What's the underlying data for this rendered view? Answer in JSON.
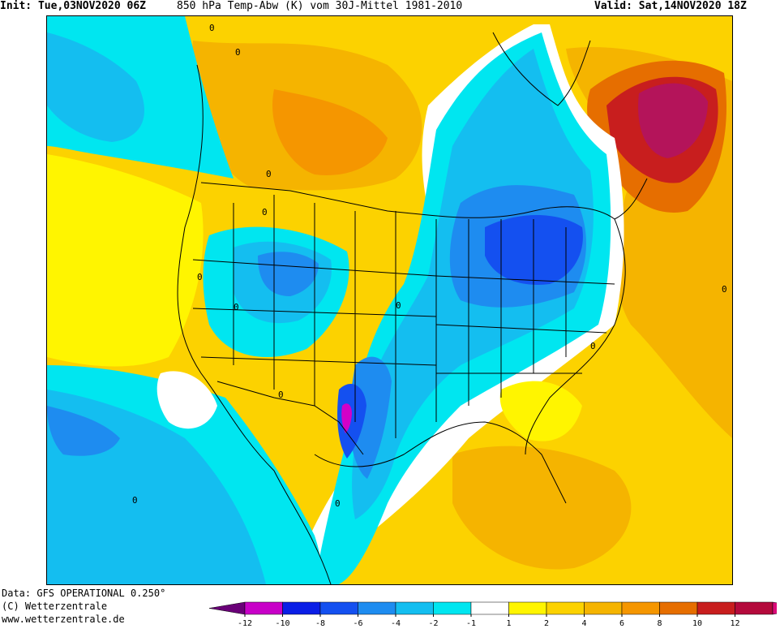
{
  "header": {
    "init": "Init: Tue,03NOV2020 06Z",
    "title": "850 hPa Temp-Abw (K) vom 30J-Mittel 1981-2010",
    "valid": "Valid: Sat,14NOV2020 18Z"
  },
  "footer": {
    "data_source": "Data: GFS OPERATIONAL 0.250°",
    "copyright": "(C) Wetterzentrale",
    "url": "www.wetterzentrale.de"
  },
  "legend": {
    "ticks": [
      "-12",
      "-10",
      "-8",
      "-6",
      "-4",
      "-2",
      "-1",
      "1",
      "2",
      "4",
      "6",
      "8",
      "10",
      "12"
    ],
    "colors": [
      "#6a0078",
      "#c800c8",
      "#0a1ee6",
      "#1450f0",
      "#1e8cf0",
      "#14bef0",
      "#00e6f0",
      "#ffffff",
      "#fff500",
      "#fcd200",
      "#f5b400",
      "#f59600",
      "#e66e00",
      "#c81e1e",
      "#b40a3c",
      "#dc0a78"
    ]
  },
  "map": {
    "contour_label": "0",
    "palette": {
      "warm_light": "#fff500",
      "warm_base": "#fcd200",
      "warm_mid": "#f5b400",
      "warm_strong": "#f59600",
      "warm_deep": "#e66e00",
      "hot": "#c81e1e",
      "hot_max": "#b4145a",
      "neutral": "#ffffff",
      "cool_light": "#00e6f0",
      "cool": "#14bef0",
      "cool_mid": "#1e8cf0",
      "cold": "#1450f0",
      "cold_max": "#d200c8"
    }
  }
}
